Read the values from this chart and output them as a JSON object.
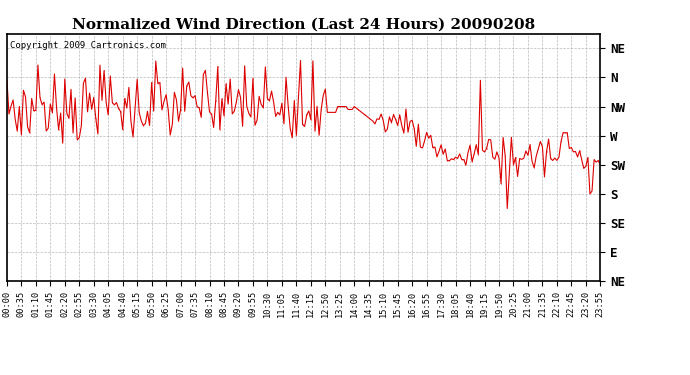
{
  "title": "Normalized Wind Direction (Last 24 Hours) 20090208",
  "copyright_text": "Copyright 2009 Cartronics.com",
  "line_color": "#DD0000",
  "background_color": "#ffffff",
  "plot_bg_color": "#ffffff",
  "grid_color": "#aaaaaa",
  "ytick_labels": [
    "NE",
    "N",
    "NW",
    "W",
    "SW",
    "S",
    "SE",
    "E",
    "NE"
  ],
  "ytick_values": [
    9,
    8,
    7,
    6,
    5,
    4,
    3,
    2,
    1
  ],
  "ylim": [
    1,
    9.5
  ],
  "xtick_labels": [
    "00:00",
    "00:35",
    "01:10",
    "01:45",
    "02:20",
    "02:55",
    "03:30",
    "04:05",
    "04:40",
    "05:15",
    "05:50",
    "06:25",
    "07:00",
    "07:35",
    "08:10",
    "08:45",
    "09:20",
    "09:55",
    "10:30",
    "11:05",
    "11:40",
    "12:15",
    "12:50",
    "13:25",
    "14:00",
    "14:35",
    "15:10",
    "15:45",
    "16:20",
    "16:55",
    "17:30",
    "18:05",
    "18:40",
    "19:15",
    "19:50",
    "20:25",
    "21:00",
    "21:35",
    "22:10",
    "22:45",
    "23:20",
    "23:55"
  ],
  "num_points": 288,
  "title_fontsize": 11,
  "axis_label_fontsize": 9
}
